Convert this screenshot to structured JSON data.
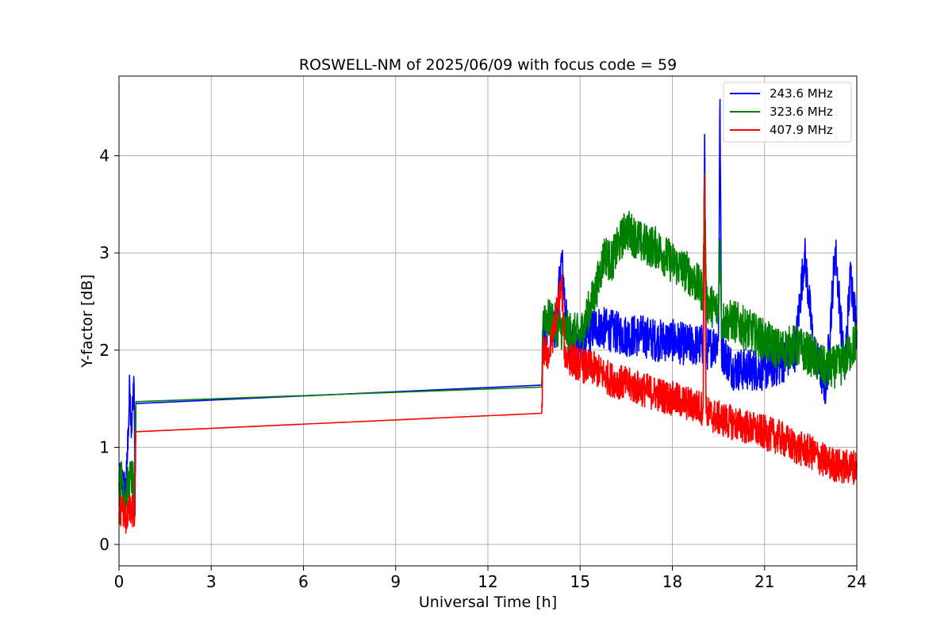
{
  "chart_data": {
    "type": "line",
    "title": "ROSWELL-NM of 2025/06/09 with focus code = 59",
    "xlabel": "Universal Time [h]",
    "ylabel": "Y-factor [dB]",
    "xlim": [
      0,
      24
    ],
    "ylim": [
      -0.22,
      4.82
    ],
    "xticks": [
      0,
      3,
      6,
      9,
      12,
      15,
      18,
      21,
      24
    ],
    "yticks": [
      0,
      1,
      2,
      3,
      4
    ],
    "grid": true,
    "legend_position": "top-right",
    "series": [
      {
        "name": "243.6 MHz",
        "color": "#0000ff",
        "x": [
          0.0,
          0.1,
          0.2,
          0.25,
          0.3,
          0.35,
          0.4,
          0.45,
          0.48,
          0.5,
          0.52,
          0.55,
          13.75,
          13.8,
          14.0,
          14.2,
          14.4,
          14.6,
          15.0,
          15.5,
          16.0,
          16.5,
          17.0,
          17.5,
          18.0,
          18.5,
          19.0,
          19.05,
          19.1,
          19.5,
          19.55,
          19.6,
          20.0,
          20.5,
          21.0,
          21.5,
          22.0,
          22.3,
          22.6,
          23.0,
          23.3,
          23.6,
          23.8,
          24.0
        ],
        "y": [
          0.6,
          0.65,
          0.55,
          0.7,
          1.2,
          1.6,
          1.1,
          1.5,
          1.73,
          1.4,
          0.3,
          1.45,
          1.64,
          2.2,
          2.3,
          2.2,
          2.95,
          2.1,
          2.05,
          2.25,
          2.2,
          2.15,
          2.15,
          2.1,
          2.1,
          2.05,
          2.05,
          4.22,
          2.0,
          2.1,
          4.58,
          2.0,
          1.8,
          1.8,
          1.8,
          1.85,
          2.0,
          3.0,
          2.0,
          1.6,
          3.05,
          1.8,
          2.8,
          2.2
        ]
      },
      {
        "name": "323.6 MHz",
        "color": "#008000",
        "x": [
          0.0,
          0.1,
          0.2,
          0.3,
          0.4,
          0.48,
          0.5,
          0.55,
          13.75,
          13.8,
          14.0,
          14.5,
          15.0,
          15.5,
          15.8,
          16.0,
          16.5,
          17.0,
          17.5,
          18.0,
          18.5,
          19.0,
          19.05,
          19.1,
          19.5,
          19.55,
          19.6,
          20.0,
          20.5,
          21.0,
          21.5,
          22.0,
          22.5,
          23.0,
          23.5,
          24.0
        ],
        "y": [
          0.55,
          0.7,
          0.5,
          0.6,
          0.7,
          0.6,
          0.4,
          1.47,
          1.62,
          2.4,
          2.3,
          2.2,
          2.15,
          2.6,
          3.0,
          2.9,
          3.25,
          3.1,
          3.05,
          2.9,
          2.8,
          2.6,
          3.82,
          2.5,
          2.4,
          3.15,
          2.3,
          2.3,
          2.2,
          2.1,
          2.0,
          2.05,
          1.95,
          1.8,
          1.85,
          2.1
        ]
      },
      {
        "name": "407.9 MHz",
        "color": "#ff0000",
        "x": [
          0.0,
          0.1,
          0.2,
          0.3,
          0.4,
          0.48,
          0.5,
          0.55,
          13.75,
          13.8,
          14.0,
          14.4,
          14.5,
          15.0,
          15.5,
          16.0,
          16.5,
          17.0,
          17.5,
          18.0,
          18.5,
          19.0,
          19.05,
          19.1,
          19.5,
          20.0,
          20.5,
          21.0,
          21.5,
          22.0,
          22.5,
          23.0,
          23.5,
          24.0
        ],
        "y": [
          0.3,
          0.4,
          0.25,
          0.35,
          0.3,
          0.4,
          0.2,
          1.16,
          1.35,
          2.0,
          1.95,
          2.68,
          1.95,
          1.85,
          1.8,
          1.7,
          1.65,
          1.6,
          1.55,
          1.5,
          1.45,
          1.4,
          3.78,
          1.35,
          1.3,
          1.25,
          1.2,
          1.15,
          1.1,
          1.0,
          0.95,
          0.85,
          0.8,
          0.8
        ]
      }
    ]
  }
}
